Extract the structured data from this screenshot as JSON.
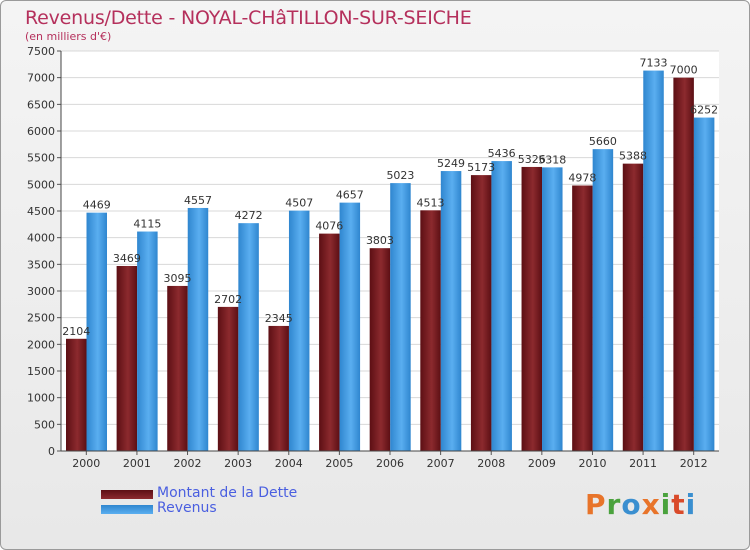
{
  "chart_data": {
    "type": "bar",
    "title": "Revenus/Dette - NOYAL-CHâTILLON-SUR-SEICHE",
    "subtitle": "(en milliers d'€)",
    "categories": [
      "2000",
      "2001",
      "2002",
      "2003",
      "2004",
      "2005",
      "2006",
      "2007",
      "2008",
      "2009",
      "2010",
      "2011",
      "2012"
    ],
    "series": [
      {
        "name": "Montant de la Dette",
        "color": "#7a1a1f",
        "values": [
          2104,
          3469,
          3095,
          2702,
          2345,
          4076,
          3803,
          4513,
          5173,
          5326,
          4978,
          5388,
          7000
        ]
      },
      {
        "name": "Revenus",
        "color": "#3c96dd",
        "values": [
          4469,
          4115,
          4557,
          4272,
          4507,
          4657,
          5023,
          5249,
          5436,
          5318,
          5660,
          7133,
          6252
        ]
      }
    ],
    "y_ticks": [
      "0",
      "500",
      "1000",
      "1500",
      "2000",
      "2500",
      "3000",
      "3500",
      "4000",
      "4500",
      "5000",
      "5500",
      "6000",
      "6500",
      "7000",
      "7500"
    ],
    "ylim": [
      0,
      7500
    ],
    "grid": true,
    "legend_position": "bottom-left"
  },
  "logo": {
    "letters": [
      "P",
      "r",
      "o",
      "x",
      "i",
      "t",
      "i"
    ],
    "colors": [
      "#e8742a",
      "#4aa23d",
      "#3a8fd0",
      "#e8742a",
      "#4aa23d",
      "#d94a2a",
      "#3a8fd0"
    ]
  }
}
